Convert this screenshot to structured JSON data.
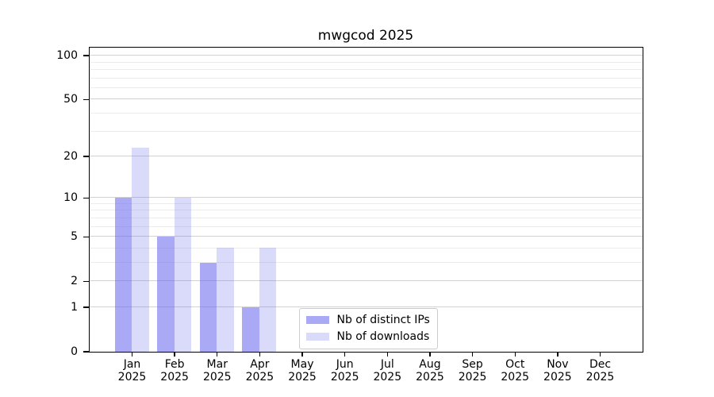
{
  "title": "mwgcod 2025",
  "colors": {
    "bar_distinct_ips": "rgba(102,102,238,0.56)",
    "bar_downloads": "rgba(102,102,238,0.24)",
    "axis": "#000000",
    "grid_major": "#d2d2d2",
    "grid_minor": "#ececec",
    "legend_border": "#cccccc",
    "background": "#ffffff"
  },
  "chart_data": {
    "type": "bar",
    "title": "mwgcod 2025",
    "xlabel": "",
    "ylabel": "",
    "scale": "log1p",
    "year": "2025",
    "months": [
      "Jan",
      "Feb",
      "Mar",
      "Apr",
      "May",
      "Jun",
      "Jul",
      "Aug",
      "Sep",
      "Oct",
      "Nov",
      "Dec"
    ],
    "categories": [
      "Jan 2025",
      "Feb 2025",
      "Mar 2025",
      "Apr 2025",
      "May 2025",
      "Jun 2025",
      "Jul 2025",
      "Aug 2025",
      "Sep 2025",
      "Oct 2025",
      "Nov 2025",
      "Dec 2025"
    ],
    "series": [
      {
        "name": "Nb of distinct IPs",
        "color": "rgba(102,102,238,0.56)",
        "values": [
          10,
          5,
          3,
          1,
          0,
          0,
          0,
          0,
          0,
          0,
          0,
          0
        ]
      },
      {
        "name": "Nb of downloads",
        "color": "rgba(102,102,238,0.24)",
        "values": [
          23,
          10,
          4,
          4,
          0,
          0,
          0,
          0,
          0,
          0,
          0,
          0
        ]
      }
    ],
    "y_major_ticks": [
      0,
      1,
      2,
      5,
      10,
      20,
      50,
      100
    ],
    "y_minor_ticks": [
      3,
      4,
      6,
      7,
      8,
      9,
      30,
      40,
      60,
      70,
      80,
      90
    ],
    "ylim": [
      0,
      113.5
    ],
    "grid": true,
    "legend_position": "lower center"
  }
}
